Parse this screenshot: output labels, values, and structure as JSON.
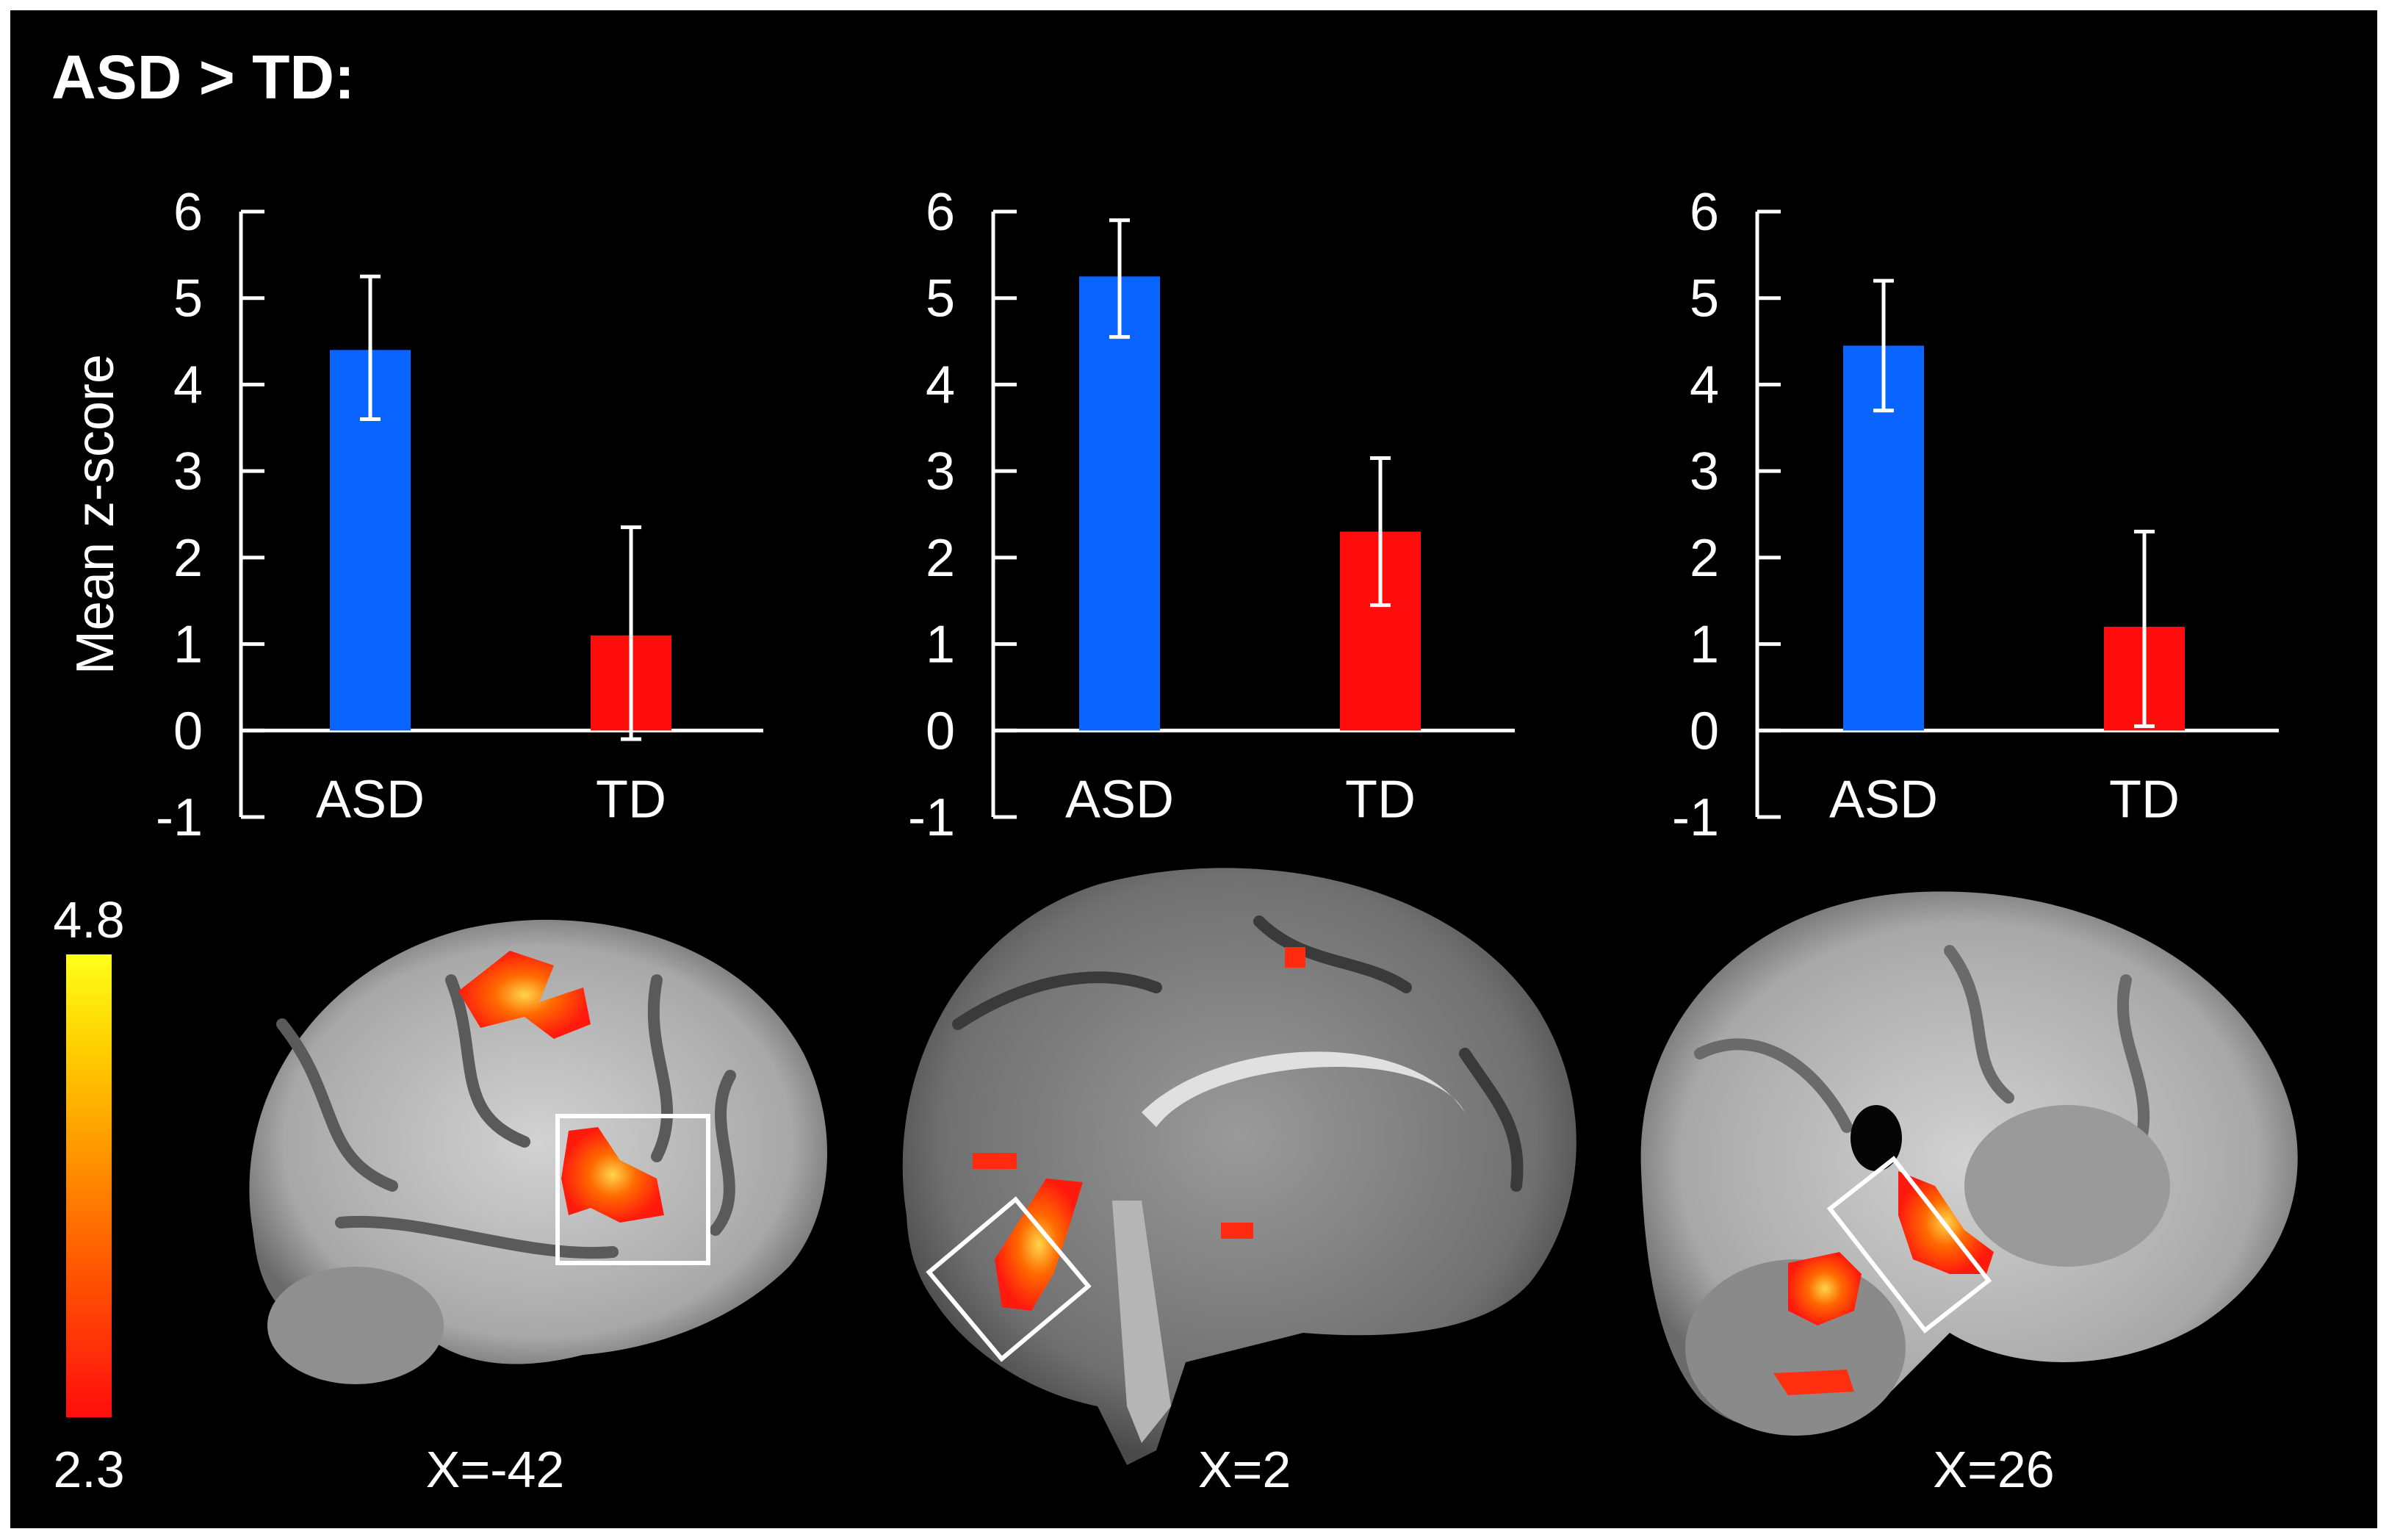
{
  "header": {
    "title": "ASD > TD:"
  },
  "chart_data": [
    {
      "type": "bar",
      "categories": [
        "ASD",
        "TD"
      ],
      "values": [
        4.4,
        1.1
      ],
      "error_high": [
        5.25,
        2.35
      ],
      "error_low": [
        3.6,
        -0.1
      ],
      "colors": [
        "#0a64ff",
        "#ff0d0d"
      ],
      "ylabel": "Mean z-score",
      "ylim": [
        -1,
        6
      ],
      "yticks": [
        "-1",
        "0",
        "1",
        "2",
        "3",
        "4",
        "5",
        "6"
      ],
      "grid": false
    },
    {
      "type": "bar",
      "categories": [
        "ASD",
        "TD"
      ],
      "values": [
        5.25,
        2.3
      ],
      "error_high": [
        5.9,
        3.15
      ],
      "error_low": [
        4.55,
        1.45
      ],
      "colors": [
        "#0a64ff",
        "#ff0d0d"
      ],
      "ylabel": "",
      "ylim": [
        -1,
        6
      ],
      "yticks": [
        "-1",
        "0",
        "1",
        "2",
        "3",
        "4",
        "5",
        "6"
      ],
      "grid": false
    },
    {
      "type": "bar",
      "categories": [
        "ASD",
        "TD"
      ],
      "values": [
        4.45,
        1.2
      ],
      "error_high": [
        5.2,
        2.3
      ],
      "error_low": [
        3.7,
        0.05
      ],
      "colors": [
        "#0a64ff",
        "#ff0d0d"
      ],
      "ylabel": "",
      "ylim": [
        -1,
        6
      ],
      "yticks": [
        "-1",
        "0",
        "1",
        "2",
        "3",
        "4",
        "5",
        "6"
      ],
      "grid": false
    }
  ],
  "colorbar": {
    "max_label": "4.8",
    "min_label": "2.3",
    "colors": [
      "#ff0d0d",
      "#ff6a00",
      "#ffd000",
      "#ffff1a"
    ]
  },
  "slices": [
    {
      "label": "X=-42"
    },
    {
      "label": "X=2"
    },
    {
      "label": "X=26"
    }
  ]
}
